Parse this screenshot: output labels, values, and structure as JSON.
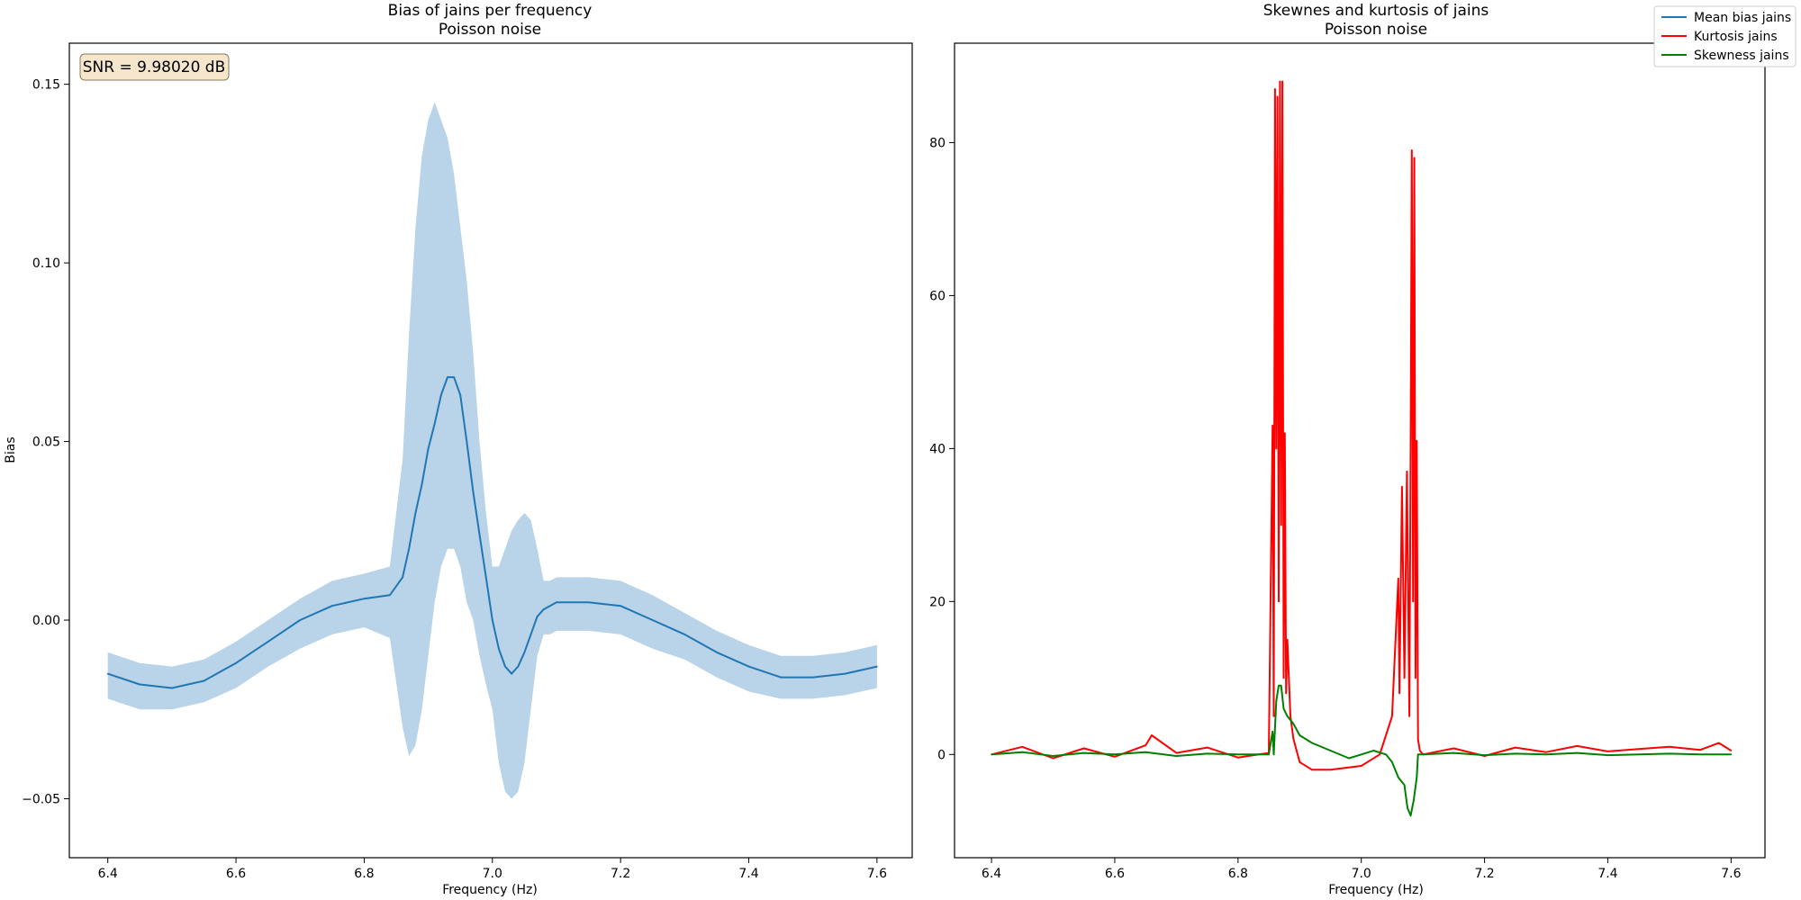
{
  "chart_data": [
    {
      "type": "line",
      "title": "Bias of jains per frequency",
      "subtitle": "Poisson noise",
      "xlabel": "Frequency (Hz)",
      "ylabel": "Bias",
      "xlim": [
        6.34,
        7.655
      ],
      "ylim": [
        -0.0665,
        0.1615
      ],
      "xticks": [
        6.4,
        6.6,
        6.8,
        7.0,
        7.2,
        7.4,
        7.6
      ],
      "xtick_labels": [
        "6.4",
        "6.6",
        "6.8",
        "7.0",
        "7.2",
        "7.4",
        "7.6"
      ],
      "yticks": [
        -0.05,
        0.0,
        0.05,
        0.1,
        0.15
      ],
      "ytick_labels": [
        "−0.05",
        "0.00",
        "0.05",
        "0.10",
        "0.15"
      ],
      "annotation": "SNR = 9.98020 dB",
      "grid": false,
      "colors": {
        "line": "#1f77b4",
        "band": "#b9d3e8",
        "annotation_bg": "#f5e6cc",
        "annotation_border": "#8a7a5a"
      },
      "series": [
        {
          "name": "Mean bias jains",
          "x": [
            6.4,
            6.45,
            6.5,
            6.55,
            6.6,
            6.65,
            6.7,
            6.75,
            6.8,
            6.84,
            6.86,
            6.87,
            6.88,
            6.89,
            6.9,
            6.91,
            6.92,
            6.93,
            6.94,
            6.95,
            6.96,
            6.97,
            6.98,
            6.99,
            7.0,
            7.01,
            7.02,
            7.03,
            7.04,
            7.05,
            7.06,
            7.07,
            7.08,
            7.09,
            7.1,
            7.15,
            7.2,
            7.25,
            7.3,
            7.35,
            7.4,
            7.45,
            7.5,
            7.55,
            7.6
          ],
          "y": [
            -0.015,
            -0.018,
            -0.019,
            -0.017,
            -0.012,
            -0.006,
            0.0,
            0.004,
            0.006,
            0.007,
            0.012,
            0.02,
            0.03,
            0.038,
            0.048,
            0.055,
            0.063,
            0.068,
            0.068,
            0.063,
            0.05,
            0.036,
            0.024,
            0.012,
            0.0,
            -0.008,
            -0.013,
            -0.015,
            -0.013,
            -0.009,
            -0.004,
            0.001,
            0.003,
            0.004,
            0.005,
            0.005,
            0.004,
            0.0,
            -0.004,
            -0.009,
            -0.013,
            -0.016,
            -0.016,
            -0.015,
            -0.013
          ],
          "lower": [
            -0.022,
            -0.025,
            -0.025,
            -0.023,
            -0.019,
            -0.013,
            -0.008,
            -0.004,
            -0.002,
            -0.005,
            -0.03,
            -0.038,
            -0.035,
            -0.025,
            -0.01,
            0.005,
            0.015,
            0.02,
            0.02,
            0.015,
            0.005,
            0.0,
            -0.01,
            -0.018,
            -0.025,
            -0.04,
            -0.048,
            -0.05,
            -0.048,
            -0.04,
            -0.025,
            -0.01,
            -0.004,
            -0.004,
            -0.003,
            -0.003,
            -0.004,
            -0.008,
            -0.011,
            -0.016,
            -0.02,
            -0.022,
            -0.022,
            -0.021,
            -0.019
          ],
          "upper": [
            -0.009,
            -0.012,
            -0.013,
            -0.011,
            -0.006,
            0.0,
            0.006,
            0.011,
            0.013,
            0.015,
            0.045,
            0.08,
            0.11,
            0.13,
            0.14,
            0.145,
            0.14,
            0.135,
            0.125,
            0.11,
            0.095,
            0.075,
            0.05,
            0.03,
            0.015,
            0.015,
            0.02,
            0.025,
            0.028,
            0.03,
            0.028,
            0.02,
            0.011,
            0.011,
            0.012,
            0.012,
            0.011,
            0.007,
            0.002,
            -0.003,
            -0.007,
            -0.01,
            -0.01,
            -0.009,
            -0.007
          ]
        }
      ]
    },
    {
      "type": "line",
      "title": "Skewnes and kurtosis of jains",
      "subtitle": "Poisson noise",
      "xlabel": "Frequency (Hz)",
      "ylabel": "",
      "xlim": [
        6.34,
        7.655
      ],
      "ylim": [
        -13.5,
        93.0
      ],
      "xticks": [
        6.4,
        6.6,
        6.8,
        7.0,
        7.2,
        7.4,
        7.6
      ],
      "xtick_labels": [
        "6.4",
        "6.6",
        "6.8",
        "7.0",
        "7.2",
        "7.4",
        "7.6"
      ],
      "yticks": [
        0,
        20,
        40,
        60,
        80
      ],
      "ytick_labels": [
        "0",
        "20",
        "40",
        "60",
        "80"
      ],
      "grid": false,
      "legend": {
        "position": "top-right",
        "entries": [
          {
            "label": "Mean bias jains",
            "color": "#1f77b4"
          },
          {
            "label": "Kurtosis jains",
            "color": "#ff0000"
          },
          {
            "label": "Skewness jains",
            "color": "#008000"
          }
        ]
      },
      "series": [
        {
          "name": "Kurtosis jains",
          "color": "#ff0000",
          "x": [
            6.4,
            6.45,
            6.5,
            6.55,
            6.6,
            6.65,
            6.66,
            6.7,
            6.75,
            6.8,
            6.85,
            6.856,
            6.858,
            6.86,
            6.862,
            6.864,
            6.866,
            6.868,
            6.87,
            6.872,
            6.874,
            6.876,
            6.878,
            6.88,
            6.885,
            6.89,
            6.9,
            6.92,
            6.95,
            7.0,
            7.03,
            7.05,
            7.06,
            7.062,
            7.066,
            7.07,
            7.074,
            7.078,
            7.08,
            7.082,
            7.084,
            7.086,
            7.088,
            7.09,
            7.092,
            7.095,
            7.1,
            7.15,
            7.2,
            7.25,
            7.3,
            7.35,
            7.4,
            7.45,
            7.5,
            7.55,
            7.58,
            7.6
          ],
          "y": [
            0,
            1.0,
            -0.5,
            0.8,
            -0.3,
            1.2,
            2.5,
            0.2,
            0.9,
            -0.4,
            0.2,
            43,
            5,
            87,
            40,
            86,
            20,
            88,
            30,
            88,
            10,
            42,
            8,
            15,
            5,
            2,
            -1,
            -2,
            -2,
            -1.5,
            0,
            5,
            23,
            8,
            35,
            10,
            37,
            5,
            40,
            79,
            20,
            78,
            10,
            41,
            2,
            0.5,
            0,
            0.8,
            -0.2,
            0.9,
            0.3,
            1.1,
            0.4,
            0.7,
            1.0,
            0.6,
            1.5,
            0.5
          ]
        },
        {
          "name": "Skewness jains",
          "color": "#008000",
          "x": [
            6.4,
            6.45,
            6.5,
            6.55,
            6.6,
            6.65,
            6.7,
            6.75,
            6.8,
            6.85,
            6.856,
            6.858,
            6.862,
            6.866,
            6.87,
            6.874,
            6.88,
            6.89,
            6.9,
            6.92,
            6.95,
            6.98,
            7.0,
            7.02,
            7.04,
            7.05,
            7.06,
            7.07,
            7.075,
            7.08,
            7.085,
            7.09,
            7.092,
            7.1,
            7.15,
            7.2,
            7.25,
            7.3,
            7.35,
            7.4,
            7.45,
            7.5,
            7.55,
            7.6
          ],
          "y": [
            0,
            0.3,
            -0.2,
            0.2,
            0,
            0.3,
            -0.2,
            0.1,
            0,
            0,
            3,
            0,
            7,
            9,
            9,
            6,
            5,
            4,
            2.5,
            1.5,
            0.5,
            -0.5,
            0,
            0.5,
            0,
            -1,
            -3,
            -4,
            -7,
            -8,
            -6,
            -3,
            0,
            0,
            0.2,
            -0.1,
            0.1,
            0,
            0.2,
            -0.1,
            0,
            0.1,
            0,
            0
          ]
        }
      ]
    }
  ]
}
